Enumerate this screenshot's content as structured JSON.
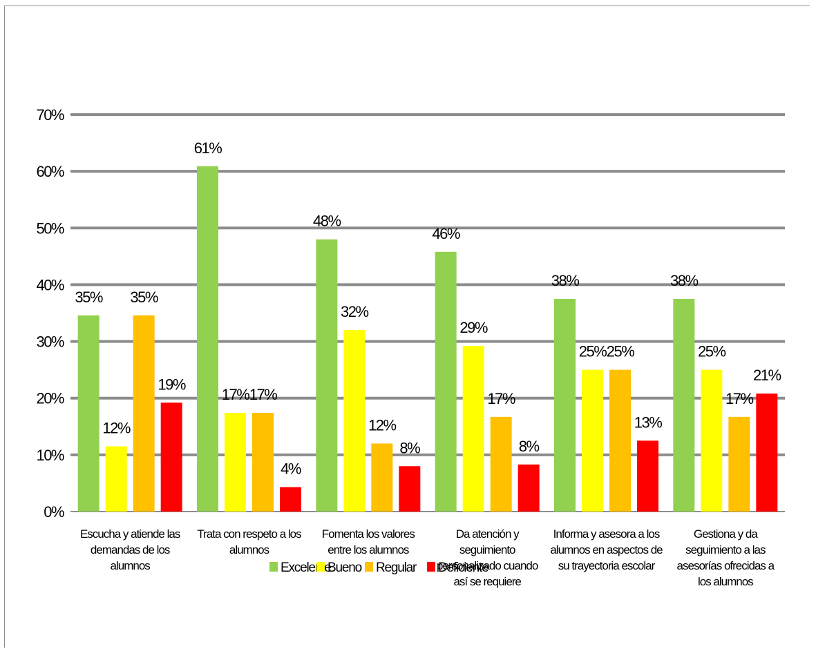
{
  "chart_data": {
    "type": "bar",
    "categories": [
      [
        "Escucha y atiende las",
        "demandas de los",
        "alumnos"
      ],
      [
        "Trata con respeto a los",
        "alumnos"
      ],
      [
        "Fomenta los valores",
        "entre los alumnos"
      ],
      [
        "Da atención y",
        "seguimiento",
        "personalizado cuando",
        "así se requiere"
      ],
      [
        "Informa y asesora a los",
        "alumnos en aspectos de",
        "su trayectoria escolar"
      ],
      [
        "Gestiona y da",
        "seguimiento a las",
        "asesorías ofrecidas a",
        "los alumnos"
      ]
    ],
    "series": [
      {
        "name": "Excelente",
        "color": "#92d050",
        "values": [
          34.6,
          60.9,
          48.0,
          45.8,
          37.5,
          37.5
        ],
        "labels": [
          "35%",
          "61%",
          "48%",
          "46%",
          "38%",
          "38%"
        ]
      },
      {
        "name": "Bueno",
        "color": "#ffff00",
        "values": [
          11.5,
          17.4,
          32.0,
          29.2,
          25.0,
          25.0
        ],
        "labels": [
          "12%",
          "17%",
          "32%",
          "29%",
          "25%",
          "25%"
        ]
      },
      {
        "name": "Regular",
        "color": "#ffc000",
        "values": [
          34.6,
          17.4,
          12.0,
          16.7,
          25.0,
          16.7
        ],
        "labels": [
          "35%",
          "17%",
          "12%",
          "17%",
          "25%",
          "17%"
        ]
      },
      {
        "name": "Deficiente",
        "color": "#ff0000",
        "values": [
          19.2,
          4.3,
          8.0,
          8.3,
          12.5,
          20.8
        ],
        "labels": [
          "19%",
          "4%",
          "8%",
          "8%",
          "13%",
          "21%"
        ]
      }
    ],
    "yticks": [
      "0%",
      "10%",
      "20%",
      "30%",
      "40%",
      "50%",
      "60%",
      "70%"
    ],
    "ylim": [
      0,
      70
    ],
    "grid": true,
    "legend": "bottom",
    "title": "",
    "xlabel": "",
    "ylabel": ""
  }
}
